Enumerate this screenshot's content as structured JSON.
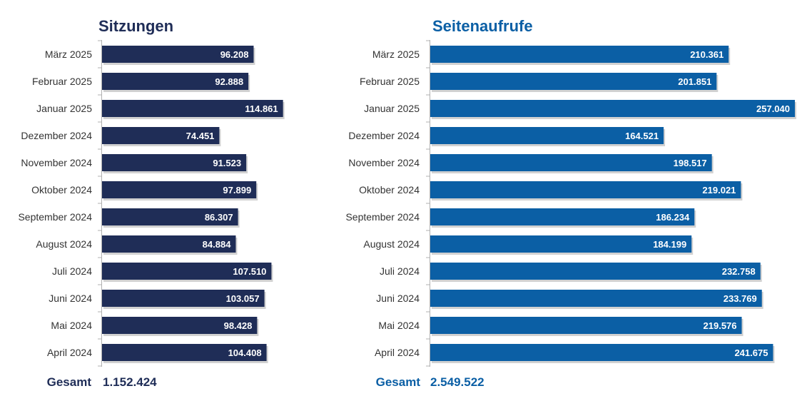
{
  "chart_data": [
    {
      "type": "bar",
      "orientation": "horizontal",
      "title": "Sitzungen",
      "categories": [
        "März 2025",
        "Februar 2025",
        "Januar 2025",
        "Dezember 2024",
        "November 2024",
        "Oktober 2024",
        "September 2024",
        "August 2024",
        "Juli 2024",
        "Juni 2024",
        "Mai 2024",
        "April 2024"
      ],
      "values": [
        96208,
        92888,
        114861,
        74451,
        91523,
        97899,
        86307,
        84884,
        107510,
        103057,
        98428,
        104408
      ],
      "value_labels": [
        "96.208",
        "92.888",
        "114.861",
        "74.451",
        "91.523",
        "97.899",
        "86.307",
        "84.884",
        "107.510",
        "103.057",
        "98.428",
        "104.408"
      ],
      "total_label": "Gesamt",
      "total_value": "1.152.424",
      "color": "#1f2d57",
      "xlim": [
        0,
        120000
      ],
      "grid": false
    },
    {
      "type": "bar",
      "orientation": "horizontal",
      "title": "Seitenaufrufe",
      "categories": [
        "März 2025",
        "Februar 2025",
        "Januar 2025",
        "Dezember 2024",
        "November 2024",
        "Oktober 2024",
        "September 2024",
        "August 2024",
        "Juli 2024",
        "Juni 2024",
        "Mai 2024",
        "April 2024"
      ],
      "values": [
        210361,
        201851,
        257040,
        164521,
        198517,
        219021,
        186234,
        184199,
        232758,
        233769,
        219576,
        241675
      ],
      "value_labels": [
        "210.361",
        "201.851",
        "257.040",
        "164.521",
        "198.517",
        "219.021",
        "186.234",
        "184.199",
        "232.758",
        "233.769",
        "219.576",
        "241.675"
      ],
      "total_label": "Gesamt",
      "total_value": "2.549.522",
      "color": "#0b5fa5",
      "xlim": [
        0,
        260000
      ],
      "grid": false
    }
  ]
}
